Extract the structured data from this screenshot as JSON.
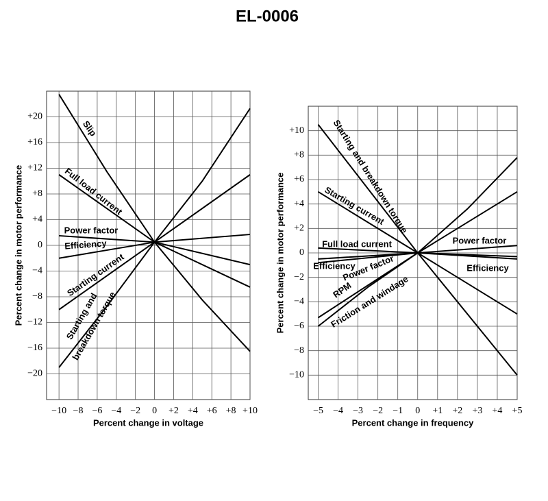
{
  "title": "EL-0006",
  "chart_data": [
    {
      "type": "line",
      "xlabel": "Percent change in voltage",
      "ylabel": "Percent change in motor performance",
      "xlim": [
        -11.3,
        10
      ],
      "ylim": [
        -24,
        24
      ],
      "grid": true,
      "color": "#000000",
      "xticks": [
        {
          "value": -10,
          "label": "−10"
        },
        {
          "value": -8,
          "label": "−8"
        },
        {
          "value": -6,
          "label": "−6"
        },
        {
          "value": -4,
          "label": "−4"
        },
        {
          "value": -2,
          "label": "−2"
        },
        0,
        {
          "value": 2,
          "label": "+2"
        },
        {
          "value": 4,
          "label": "+4"
        },
        {
          "value": 6,
          "label": "+6"
        },
        {
          "value": 8,
          "label": "+8"
        },
        {
          "value": 10,
          "label": "+10"
        }
      ],
      "yticks": [
        {
          "value": -20,
          "label": "−20"
        },
        {
          "value": -16,
          "label": "−16"
        },
        {
          "value": -12,
          "label": "−12"
        },
        {
          "value": -8,
          "label": "−8"
        },
        {
          "value": -4,
          "label": "−4"
        },
        0,
        {
          "value": 4,
          "label": "+4"
        },
        {
          "value": 8,
          "label": "+8"
        },
        {
          "value": 12,
          "label": "+12"
        },
        {
          "value": 16,
          "label": "+16"
        },
        {
          "value": 20,
          "label": "+20"
        }
      ],
      "series": [
        {
          "name": "Slip",
          "x": [
            -10,
            -5,
            0,
            5,
            10
          ],
          "values": [
            23.5,
            11.5,
            0.5,
            -8.5,
            -16.5
          ]
        },
        {
          "name": "Full load current",
          "x": [
            -10,
            0,
            10
          ],
          "values": [
            11,
            0.5,
            -6.5
          ]
        },
        {
          "name": "Power factor",
          "x": [
            -10,
            0,
            10
          ],
          "values": [
            1.5,
            0.5,
            -3
          ]
        },
        {
          "name": "Efficiency",
          "x": [
            -10,
            0,
            10
          ],
          "values": [
            -2,
            0.5,
            1.7
          ]
        },
        {
          "name": "Starting current",
          "x": [
            -10,
            0,
            10
          ],
          "values": [
            -10,
            0.5,
            11
          ]
        },
        {
          "label_lines": [
            "Starting and",
            "breakdown torque"
          ],
          "x": [
            -10,
            -5,
            0,
            5,
            10
          ],
          "values": [
            -19,
            -9.5,
            0.5,
            10,
            21.3
          ]
        }
      ]
    },
    {
      "type": "line",
      "xlabel": "Percent change in frequency",
      "ylabel": "Percent change in motor performance",
      "xlim": [
        -5.5,
        5
      ],
      "ylim": [
        -12,
        12
      ],
      "grid": true,
      "color": "#000000",
      "xticks": [
        {
          "value": -5,
          "label": "−5"
        },
        {
          "value": -4,
          "label": "−4"
        },
        {
          "value": -3,
          "label": "−3"
        },
        {
          "value": -2,
          "label": "−2"
        },
        {
          "value": -1,
          "label": "−1"
        },
        0,
        {
          "value": 1,
          "label": "+1"
        },
        {
          "value": 2,
          "label": "+2"
        },
        {
          "value": 3,
          "label": "+3"
        },
        {
          "value": 4,
          "label": "+4"
        },
        {
          "value": 5,
          "label": "+5"
        }
      ],
      "yticks": [
        {
          "value": -10,
          "label": "−10"
        },
        {
          "value": -8,
          "label": "−8"
        },
        {
          "value": -6,
          "label": "−6"
        },
        {
          "value": -4,
          "label": "−4"
        },
        {
          "value": -2,
          "label": "−2"
        },
        0,
        {
          "value": 2,
          "label": "+2"
        },
        {
          "value": 4,
          "label": "+4"
        },
        {
          "value": 6,
          "label": "+6"
        },
        {
          "value": 8,
          "label": "+8"
        },
        {
          "value": 10,
          "label": "+10"
        }
      ],
      "series": [
        {
          "name": "Starting and breakdown torque",
          "x": [
            -5,
            0,
            5
          ],
          "values": [
            10.5,
            0,
            -10
          ]
        },
        {
          "name": "Starting current",
          "x": [
            -5,
            0,
            5
          ],
          "values": [
            5,
            0,
            -5
          ]
        },
        {
          "name": "Full load current",
          "x": [
            -5,
            0,
            5
          ],
          "values": [
            0.4,
            0,
            -0.3
          ]
        },
        {
          "name": "Power factor",
          "x": [
            -5,
            0,
            5
          ],
          "values": [
            -0.5,
            0,
            0.6
          ]
        },
        {
          "name": "Efficiency",
          "x": [
            -5,
            0,
            5
          ],
          "values": [
            -0.8,
            0,
            -0.5
          ]
        },
        {
          "name": "RPM",
          "x": [
            -5,
            0,
            5
          ],
          "values": [
            -5.3,
            0,
            5
          ]
        },
        {
          "name": "Friction and windage",
          "x": [
            -5,
            -2.5,
            0,
            2.5,
            5
          ],
          "values": [
            -6,
            -2.8,
            0,
            3.6,
            7.8
          ]
        }
      ]
    }
  ]
}
